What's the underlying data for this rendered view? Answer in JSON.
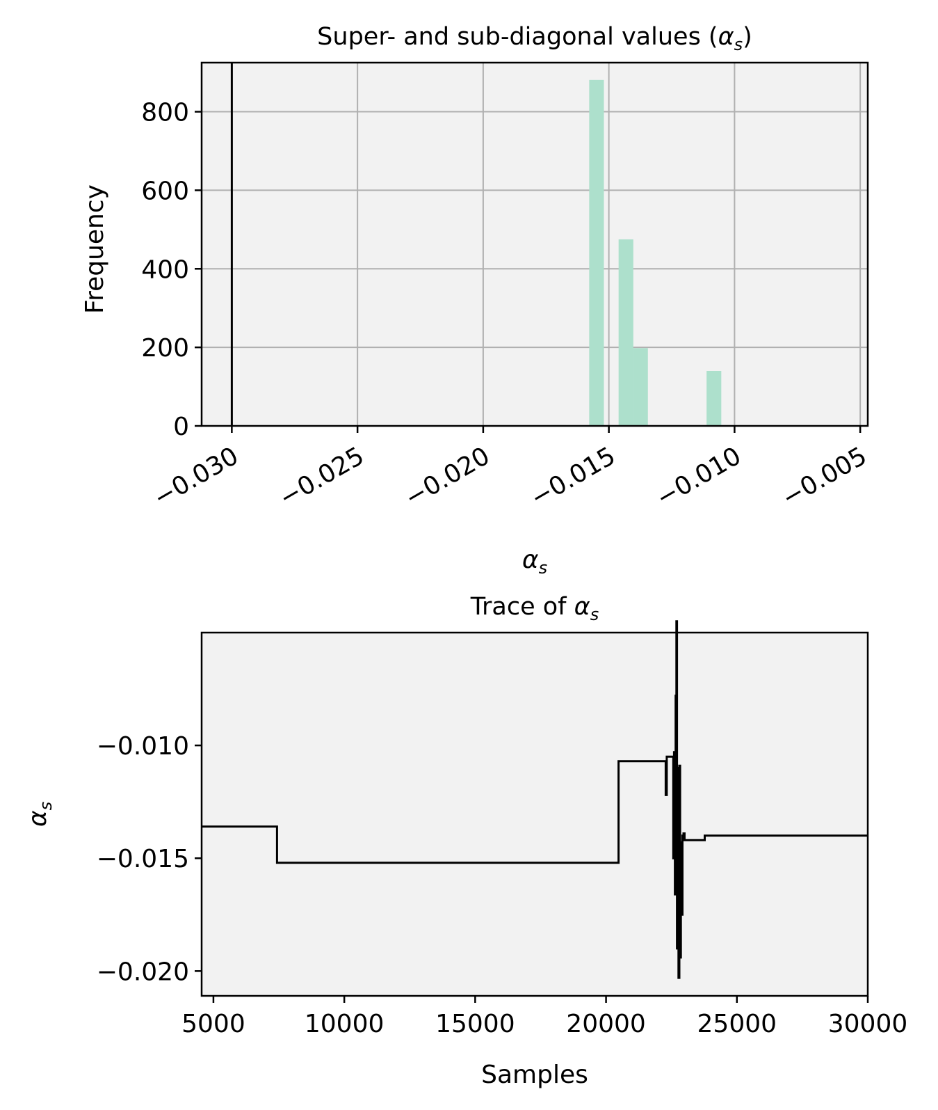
{
  "chart_data": [
    {
      "type": "bar",
      "title": "Super- and sub-diagonal values (αs)",
      "title_parts": {
        "prefix": "Super- and sub-diagonal values (",
        "symbol": "α",
        "subscript": "s",
        "suffix": ")"
      },
      "xlabel": "αs",
      "xlabel_parts": {
        "symbol": "α",
        "subscript": "s"
      },
      "ylabel": "Frequency",
      "xlim": [
        -0.0312,
        -0.0047
      ],
      "ylim": [
        0,
        925
      ],
      "xticks": [
        -0.03,
        -0.025,
        -0.02,
        -0.015,
        -0.01,
        -0.005
      ],
      "xtick_labels": [
        "−0.030",
        "−0.025",
        "−0.020",
        "−0.015",
        "−0.010",
        "−0.005"
      ],
      "yticks": [
        0,
        200,
        400,
        600,
        800
      ],
      "ytick_labels": [
        "0",
        "200",
        "400",
        "600",
        "800"
      ],
      "grid": true,
      "bar_color": "#ade0cc",
      "bin_width": 0.000585,
      "bins": [
        {
          "x": -0.017,
          "count": 2
        },
        {
          "x": -0.01549,
          "count": 881
        },
        {
          "x": -0.01432,
          "count": 475
        },
        {
          "x": -0.01374,
          "count": 198
        },
        {
          "x": -0.01082,
          "count": 140
        }
      ],
      "vline": {
        "x": -0.03,
        "color": "#000000"
      }
    },
    {
      "type": "line",
      "title": "Trace of αs",
      "title_parts": {
        "prefix": "Trace of ",
        "symbol": "α",
        "subscript": "s"
      },
      "xlabel": "Samples",
      "ylabel": "αs",
      "ylabel_parts": {
        "symbol": "α",
        "subscript": "s"
      },
      "xlim": [
        4550,
        30000
      ],
      "ylim": [
        -0.0211,
        -0.005
      ],
      "xticks": [
        5000,
        10000,
        15000,
        20000,
        25000,
        30000
      ],
      "xtick_labels": [
        "5000",
        "10000",
        "15000",
        "20000",
        "25000",
        "30000"
      ],
      "yticks": [
        -0.02,
        -0.015,
        -0.01
      ],
      "ytick_labels": [
        "−0.020",
        "−0.015",
        "−0.010"
      ],
      "grid": false,
      "line_color": "#000000",
      "series": [
        {
          "x": [
            4550,
            7430,
            7430,
            20480,
            20480,
            22280,
            22280,
            22320,
            22320,
            22570,
            22570,
            22600,
            22600,
            22630,
            22630,
            22660,
            22660,
            22690,
            22690,
            22710,
            22710,
            22740,
            22740,
            22770,
            22770,
            22800,
            22800,
            22830,
            22830,
            22860,
            22860,
            22890,
            22890,
            22920,
            22920,
            22960,
            22960,
            23000,
            23000,
            23770,
            23770,
            23790,
            23790,
            30000
          ],
          "y": [
            -0.0136,
            -0.0136,
            -0.0152,
            -0.0152,
            -0.0107,
            -0.0107,
            -0.0122,
            -0.0122,
            -0.0105,
            -0.0105,
            -0.015,
            -0.015,
            -0.0103,
            -0.0103,
            -0.0166,
            -0.0166,
            -0.0078,
            -0.0078,
            -0.0045,
            -0.0045,
            -0.019,
            -0.019,
            -0.011,
            -0.011,
            -0.0203,
            -0.0203,
            -0.0109,
            -0.0109,
            -0.0194,
            -0.0194,
            -0.0143,
            -0.0143,
            -0.0175,
            -0.0175,
            -0.014,
            -0.014,
            -0.0139,
            -0.0139,
            -0.0142,
            -0.0142,
            -0.014,
            -0.014,
            -0.014,
            -0.014
          ]
        }
      ]
    }
  ]
}
